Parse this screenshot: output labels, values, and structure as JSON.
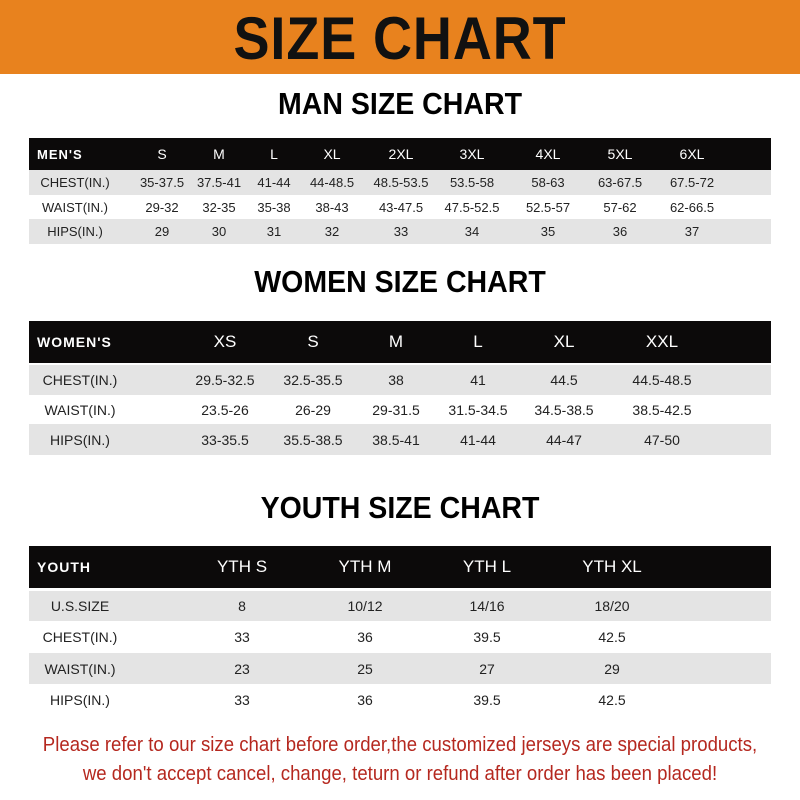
{
  "banner": {
    "title": "SIZE CHART",
    "color": "#e8821e"
  },
  "men": {
    "title": "MAN SIZE CHART",
    "header": [
      "MEN'S",
      "S",
      "M",
      "L",
      "XL",
      "2XL",
      "3XL",
      "4XL",
      "5XL",
      "6XL"
    ],
    "rows": [
      [
        "CHEST(IN.)",
        "35-37.5",
        "37.5-41",
        "41-44",
        "44-48.5",
        "48.5-53.5",
        "53.5-58",
        "58-63",
        "63-67.5",
        "67.5-72"
      ],
      [
        "WAIST(IN.)",
        "29-32",
        "32-35",
        "35-38",
        "38-43",
        "43-47.5",
        "47.5-52.5",
        "52.5-57",
        "57-62",
        "62-66.5"
      ],
      [
        "HIPS(IN.)",
        "29",
        "30",
        "31",
        "32",
        "33",
        "34",
        "35",
        "36",
        "37"
      ]
    ]
  },
  "women": {
    "title": "WOMEN SIZE CHART",
    "header": [
      "WOMEN'S",
      "XS",
      "S",
      "M",
      "L",
      "XL",
      "XXL"
    ],
    "rows": [
      [
        "CHEST(IN.)",
        "29.5-32.5",
        "32.5-35.5",
        "38",
        "41",
        "44.5",
        "44.5-48.5"
      ],
      [
        "WAIST(IN.)",
        "23.5-26",
        "26-29",
        "29-31.5",
        "31.5-34.5",
        "34.5-38.5",
        "38.5-42.5"
      ],
      [
        "HIPS(IN.)",
        "33-35.5",
        "35.5-38.5",
        "38.5-41",
        "41-44",
        "44-47",
        "47-50"
      ]
    ]
  },
  "youth": {
    "title": "YOUTH SIZE CHART",
    "header": [
      "YOUTH",
      "YTH S",
      "YTH M",
      "YTH L",
      "YTH XL"
    ],
    "rows": [
      [
        "U.S.SIZE",
        "8",
        "10/12",
        "14/16",
        "18/20"
      ],
      [
        "CHEST(IN.)",
        "33",
        "36",
        "39.5",
        "42.5"
      ],
      [
        "WAIST(IN.)",
        "23",
        "25",
        "27",
        "29"
      ],
      [
        "HIPS(IN.)",
        "33",
        "36",
        "39.5",
        "42.5"
      ]
    ]
  },
  "footer": {
    "line1": "Please refer to our size chart before order,the customized jerseys are special products,",
    "line2": "we don't accept cancel, change, teturn or refund after order has been placed!",
    "color": "#b5281f"
  }
}
